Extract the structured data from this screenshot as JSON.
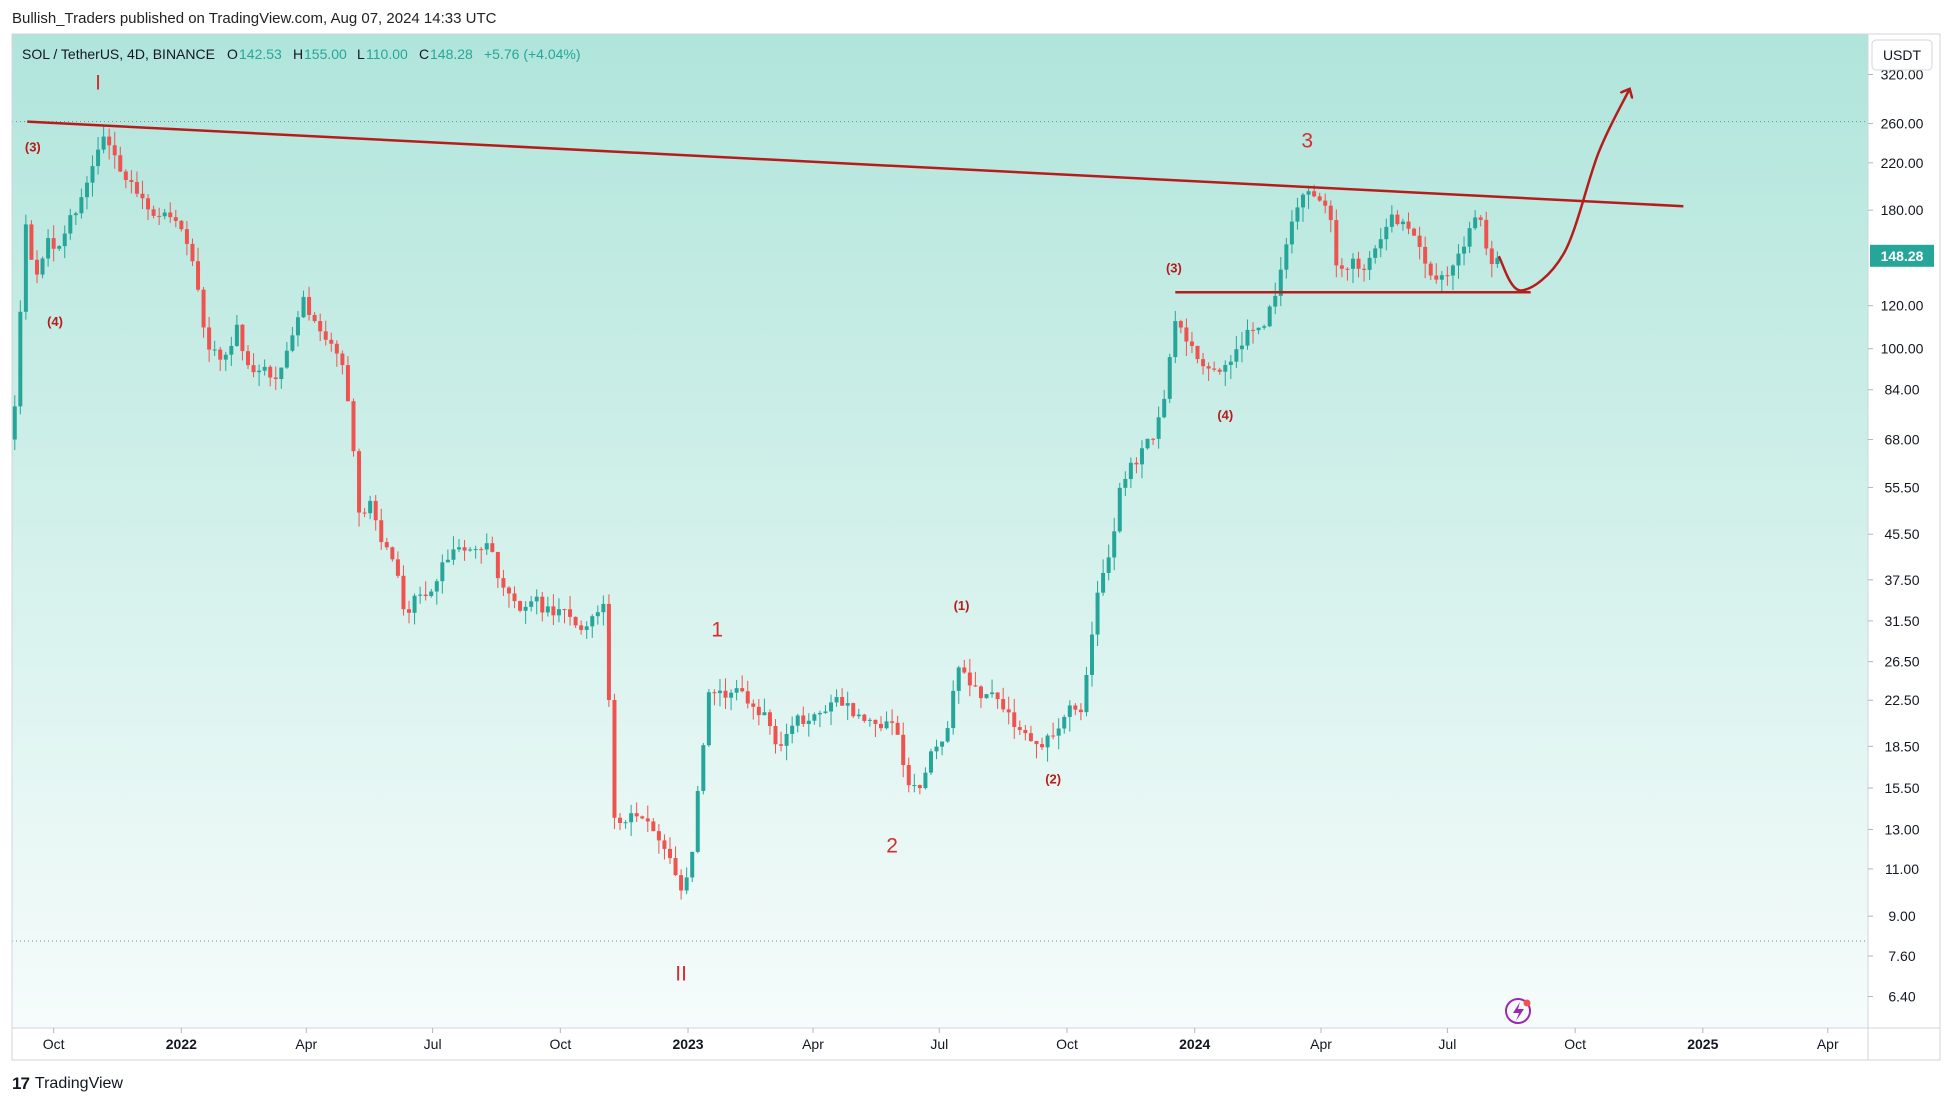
{
  "header": {
    "published": "Bullish_Traders published on TradingView.com, Aug 07, 2024 14:33 UTC"
  },
  "legend": {
    "symbol": "SOL / TetherUS, 4D, BINANCE",
    "o_label": "O",
    "o_value": "142.53",
    "h_label": "H",
    "h_value": "155.00",
    "l_label": "L",
    "l_value": "110.00",
    "c_label": "C",
    "c_value": "148.28",
    "change": "+5.76 (+4.04%)"
  },
  "currency_badge": "USDT",
  "last_price_label": "148.28",
  "footer": {
    "brand": "TradingView",
    "mark": "17"
  },
  "colors": {
    "up": "#26a69a",
    "down": "#ef5350",
    "annotation": "#b71c1c",
    "bg_top": "#b0e5db",
    "bg_bottom": "#f6fcfb",
    "axis_text": "#131722"
  },
  "chart_data": {
    "type": "candlestick",
    "symbol": "SOL / TetherUS",
    "interval": "4D",
    "exchange": "BINANCE",
    "y_scale": "log",
    "y_range": [
      5.6,
      380
    ],
    "y_ticks": [
      "320.00",
      "260.00",
      "220.00",
      "180.00",
      "148.28",
      "120.00",
      "100.00",
      "84.00",
      "68.00",
      "55.50",
      "45.50",
      "37.50",
      "31.50",
      "26.50",
      "22.50",
      "18.50",
      "15.50",
      "13.00",
      "11.00",
      "9.00",
      "7.60",
      "6.40"
    ],
    "x_range": [
      "2021-09-01",
      "2025-04-30"
    ],
    "x_ticks": [
      {
        "date": "2021-10-01",
        "label": "Oct",
        "bold": false
      },
      {
        "date": "2022-01-01",
        "label": "2022",
        "bold": true
      },
      {
        "date": "2022-04-01",
        "label": "Apr",
        "bold": false
      },
      {
        "date": "2022-07-01",
        "label": "Jul",
        "bold": false
      },
      {
        "date": "2022-10-01",
        "label": "Oct",
        "bold": false
      },
      {
        "date": "2023-01-01",
        "label": "2023",
        "bold": true
      },
      {
        "date": "2023-04-01",
        "label": "Apr",
        "bold": false
      },
      {
        "date": "2023-07-01",
        "label": "Jul",
        "bold": false
      },
      {
        "date": "2023-10-01",
        "label": "Oct",
        "bold": false
      },
      {
        "date": "2024-01-01",
        "label": "2024",
        "bold": true
      },
      {
        "date": "2024-04-01",
        "label": "Apr",
        "bold": false
      },
      {
        "date": "2024-07-01",
        "label": "Jul",
        "bold": false
      },
      {
        "date": "2024-10-01",
        "label": "Oct",
        "bold": false
      },
      {
        "date": "2025-01-01",
        "label": "2025",
        "bold": true
      },
      {
        "date": "2025-04-01",
        "label": "Apr",
        "bold": false
      }
    ],
    "price_path": [
      [
        "2021-09-01",
        68
      ],
      [
        "2021-09-06",
        80
      ],
      [
        "2021-09-12",
        175
      ],
      [
        "2021-09-20",
        135
      ],
      [
        "2021-09-28",
        160
      ],
      [
        "2021-10-05",
        145
      ],
      [
        "2021-10-12",
        170
      ],
      [
        "2021-10-22",
        185
      ],
      [
        "2021-11-01",
        215
      ],
      [
        "2021-11-06",
        245
      ],
      [
        "2021-11-14",
        228
      ],
      [
        "2021-11-24",
        205
      ],
      [
        "2021-12-04",
        195
      ],
      [
        "2021-12-14",
        175
      ],
      [
        "2021-12-24",
        180
      ],
      [
        "2022-01-03",
        168
      ],
      [
        "2022-01-12",
        140
      ],
      [
        "2022-01-22",
        100
      ],
      [
        "2022-02-02",
        95
      ],
      [
        "2022-02-12",
        108
      ],
      [
        "2022-02-22",
        88
      ],
      [
        "2022-03-03",
        95
      ],
      [
        "2022-03-13",
        86
      ],
      [
        "2022-03-23",
        105
      ],
      [
        "2022-04-01",
        125
      ],
      [
        "2022-04-10",
        108
      ],
      [
        "2022-04-20",
        102
      ],
      [
        "2022-04-30",
        90
      ],
      [
        "2022-05-06",
        68
      ],
      [
        "2022-05-12",
        46
      ],
      [
        "2022-05-18",
        52
      ],
      [
        "2022-05-28",
        44
      ],
      [
        "2022-06-08",
        38
      ],
      [
        "2022-06-14",
        32
      ],
      [
        "2022-06-22",
        36
      ],
      [
        "2022-07-01",
        35
      ],
      [
        "2022-07-10",
        40
      ],
      [
        "2022-07-20",
        44
      ],
      [
        "2022-08-01",
        42
      ],
      [
        "2022-08-12",
        44
      ],
      [
        "2022-08-22",
        36
      ],
      [
        "2022-09-02",
        33
      ],
      [
        "2022-09-12",
        35
      ],
      [
        "2022-09-22",
        33
      ],
      [
        "2022-10-01",
        33
      ],
      [
        "2022-10-10",
        32
      ],
      [
        "2022-10-20",
        30
      ],
      [
        "2022-10-30",
        33
      ],
      [
        "2022-11-05",
        35
      ],
      [
        "2022-11-09",
        14
      ],
      [
        "2022-11-15",
        13.5
      ],
      [
        "2022-11-25",
        13.8
      ],
      [
        "2022-12-05",
        13.2
      ],
      [
        "2022-12-15",
        12.5
      ],
      [
        "2022-12-22",
        11.5
      ],
      [
        "2022-12-29",
        9.8
      ],
      [
        "2023-01-06",
        12
      ],
      [
        "2023-01-13",
        18
      ],
      [
        "2023-01-19",
        24
      ],
      [
        "2023-01-29",
        22.5
      ],
      [
        "2023-02-08",
        24
      ],
      [
        "2023-02-18",
        22
      ],
      [
        "2023-02-28",
        21
      ],
      [
        "2023-03-10",
        18
      ],
      [
        "2023-03-20",
        21
      ],
      [
        "2023-03-30",
        20.5
      ],
      [
        "2023-04-09",
        21
      ],
      [
        "2023-04-19",
        23.5
      ],
      [
        "2023-04-29",
        21.5
      ],
      [
        "2023-05-09",
        21
      ],
      [
        "2023-05-19",
        20
      ],
      [
        "2023-05-29",
        21
      ],
      [
        "2023-06-06",
        18
      ],
      [
        "2023-06-12",
        15
      ],
      [
        "2023-06-20",
        16
      ],
      [
        "2023-06-30",
        18.5
      ],
      [
        "2023-07-10",
        20
      ],
      [
        "2023-07-15",
        26
      ],
      [
        "2023-07-25",
        24
      ],
      [
        "2023-08-04",
        23
      ],
      [
        "2023-08-14",
        23
      ],
      [
        "2023-08-24",
        20.5
      ],
      [
        "2023-09-03",
        19.5
      ],
      [
        "2023-09-13",
        18.5
      ],
      [
        "2023-09-23",
        19.5
      ],
      [
        "2023-10-03",
        22
      ],
      [
        "2023-10-13",
        21.5
      ],
      [
        "2023-10-19",
        27
      ],
      [
        "2023-10-25",
        35
      ],
      [
        "2023-11-04",
        44
      ],
      [
        "2023-11-12",
        58
      ],
      [
        "2023-11-22",
        62
      ],
      [
        "2023-12-02",
        68
      ],
      [
        "2023-12-10",
        75
      ],
      [
        "2023-12-20",
        115
      ],
      [
        "2023-12-26",
        105
      ],
      [
        "2024-01-05",
        95
      ],
      [
        "2024-01-15",
        90
      ],
      [
        "2024-01-25",
        95
      ],
      [
        "2024-02-04",
        100
      ],
      [
        "2024-02-14",
        110
      ],
      [
        "2024-02-24",
        112
      ],
      [
        "2024-03-04",
        135
      ],
      [
        "2024-03-14",
        175
      ],
      [
        "2024-03-20",
        195
      ],
      [
        "2024-03-30",
        190
      ],
      [
        "2024-04-09",
        175
      ],
      [
        "2024-04-15",
        140
      ],
      [
        "2024-04-25",
        145
      ],
      [
        "2024-05-05",
        140
      ],
      [
        "2024-05-15",
        160
      ],
      [
        "2024-05-25",
        175
      ],
      [
        "2024-06-04",
        170
      ],
      [
        "2024-06-14",
        150
      ],
      [
        "2024-06-24",
        135
      ],
      [
        "2024-07-04",
        140
      ],
      [
        "2024-07-14",
        150
      ],
      [
        "2024-07-24",
        180
      ],
      [
        "2024-08-03",
        145
      ],
      [
        "2024-08-07",
        148.28
      ]
    ],
    "annotations": [
      {
        "text": "I",
        "date": "2021-11-02",
        "price": 300,
        "size": "large"
      },
      {
        "text": "II",
        "date": "2022-12-27",
        "price": 6.85,
        "size": "large"
      },
      {
        "text": "1",
        "date": "2023-01-22",
        "price": 29.5,
        "size": "large"
      },
      {
        "text": "2",
        "date": "2023-05-28",
        "price": 11.8,
        "size": "large"
      },
      {
        "text": "3",
        "date": "2024-03-22",
        "price": 235,
        "size": "large"
      },
      {
        "text": "(3)",
        "date": "2021-09-16",
        "price": 231,
        "size": "small"
      },
      {
        "text": "(4)",
        "date": "2021-10-02",
        "price": 110,
        "size": "small"
      },
      {
        "text": "(1)",
        "date": "2023-07-17",
        "price": 33,
        "size": "small"
      },
      {
        "text": "(2)",
        "date": "2023-09-21",
        "price": 15.8,
        "size": "small"
      },
      {
        "text": "(3)",
        "date": "2023-12-17",
        "price": 138,
        "size": "small"
      },
      {
        "text": "(4)",
        "date": "2024-01-23",
        "price": 74,
        "size": "small"
      }
    ],
    "trendlines": [
      {
        "name": "resistance-trendline",
        "from": [
          "2021-09-12",
          262
        ],
        "to": [
          "2024-12-18",
          183
        ]
      },
      {
        "name": "support-line",
        "from": [
          "2023-12-18",
          127
        ],
        "to": [
          "2024-08-30",
          127
        ]
      }
    ],
    "projection": {
      "points": [
        [
          "2024-08-07",
          148
        ],
        [
          "2024-08-23",
          128
        ],
        [
          "2024-09-23",
          150
        ],
        [
          "2024-10-18",
          230
        ],
        [
          "2024-11-09",
          300
        ]
      ]
    },
    "reference_lines": [
      {
        "price": 262
      },
      {
        "price": 8.1
      }
    ]
  }
}
